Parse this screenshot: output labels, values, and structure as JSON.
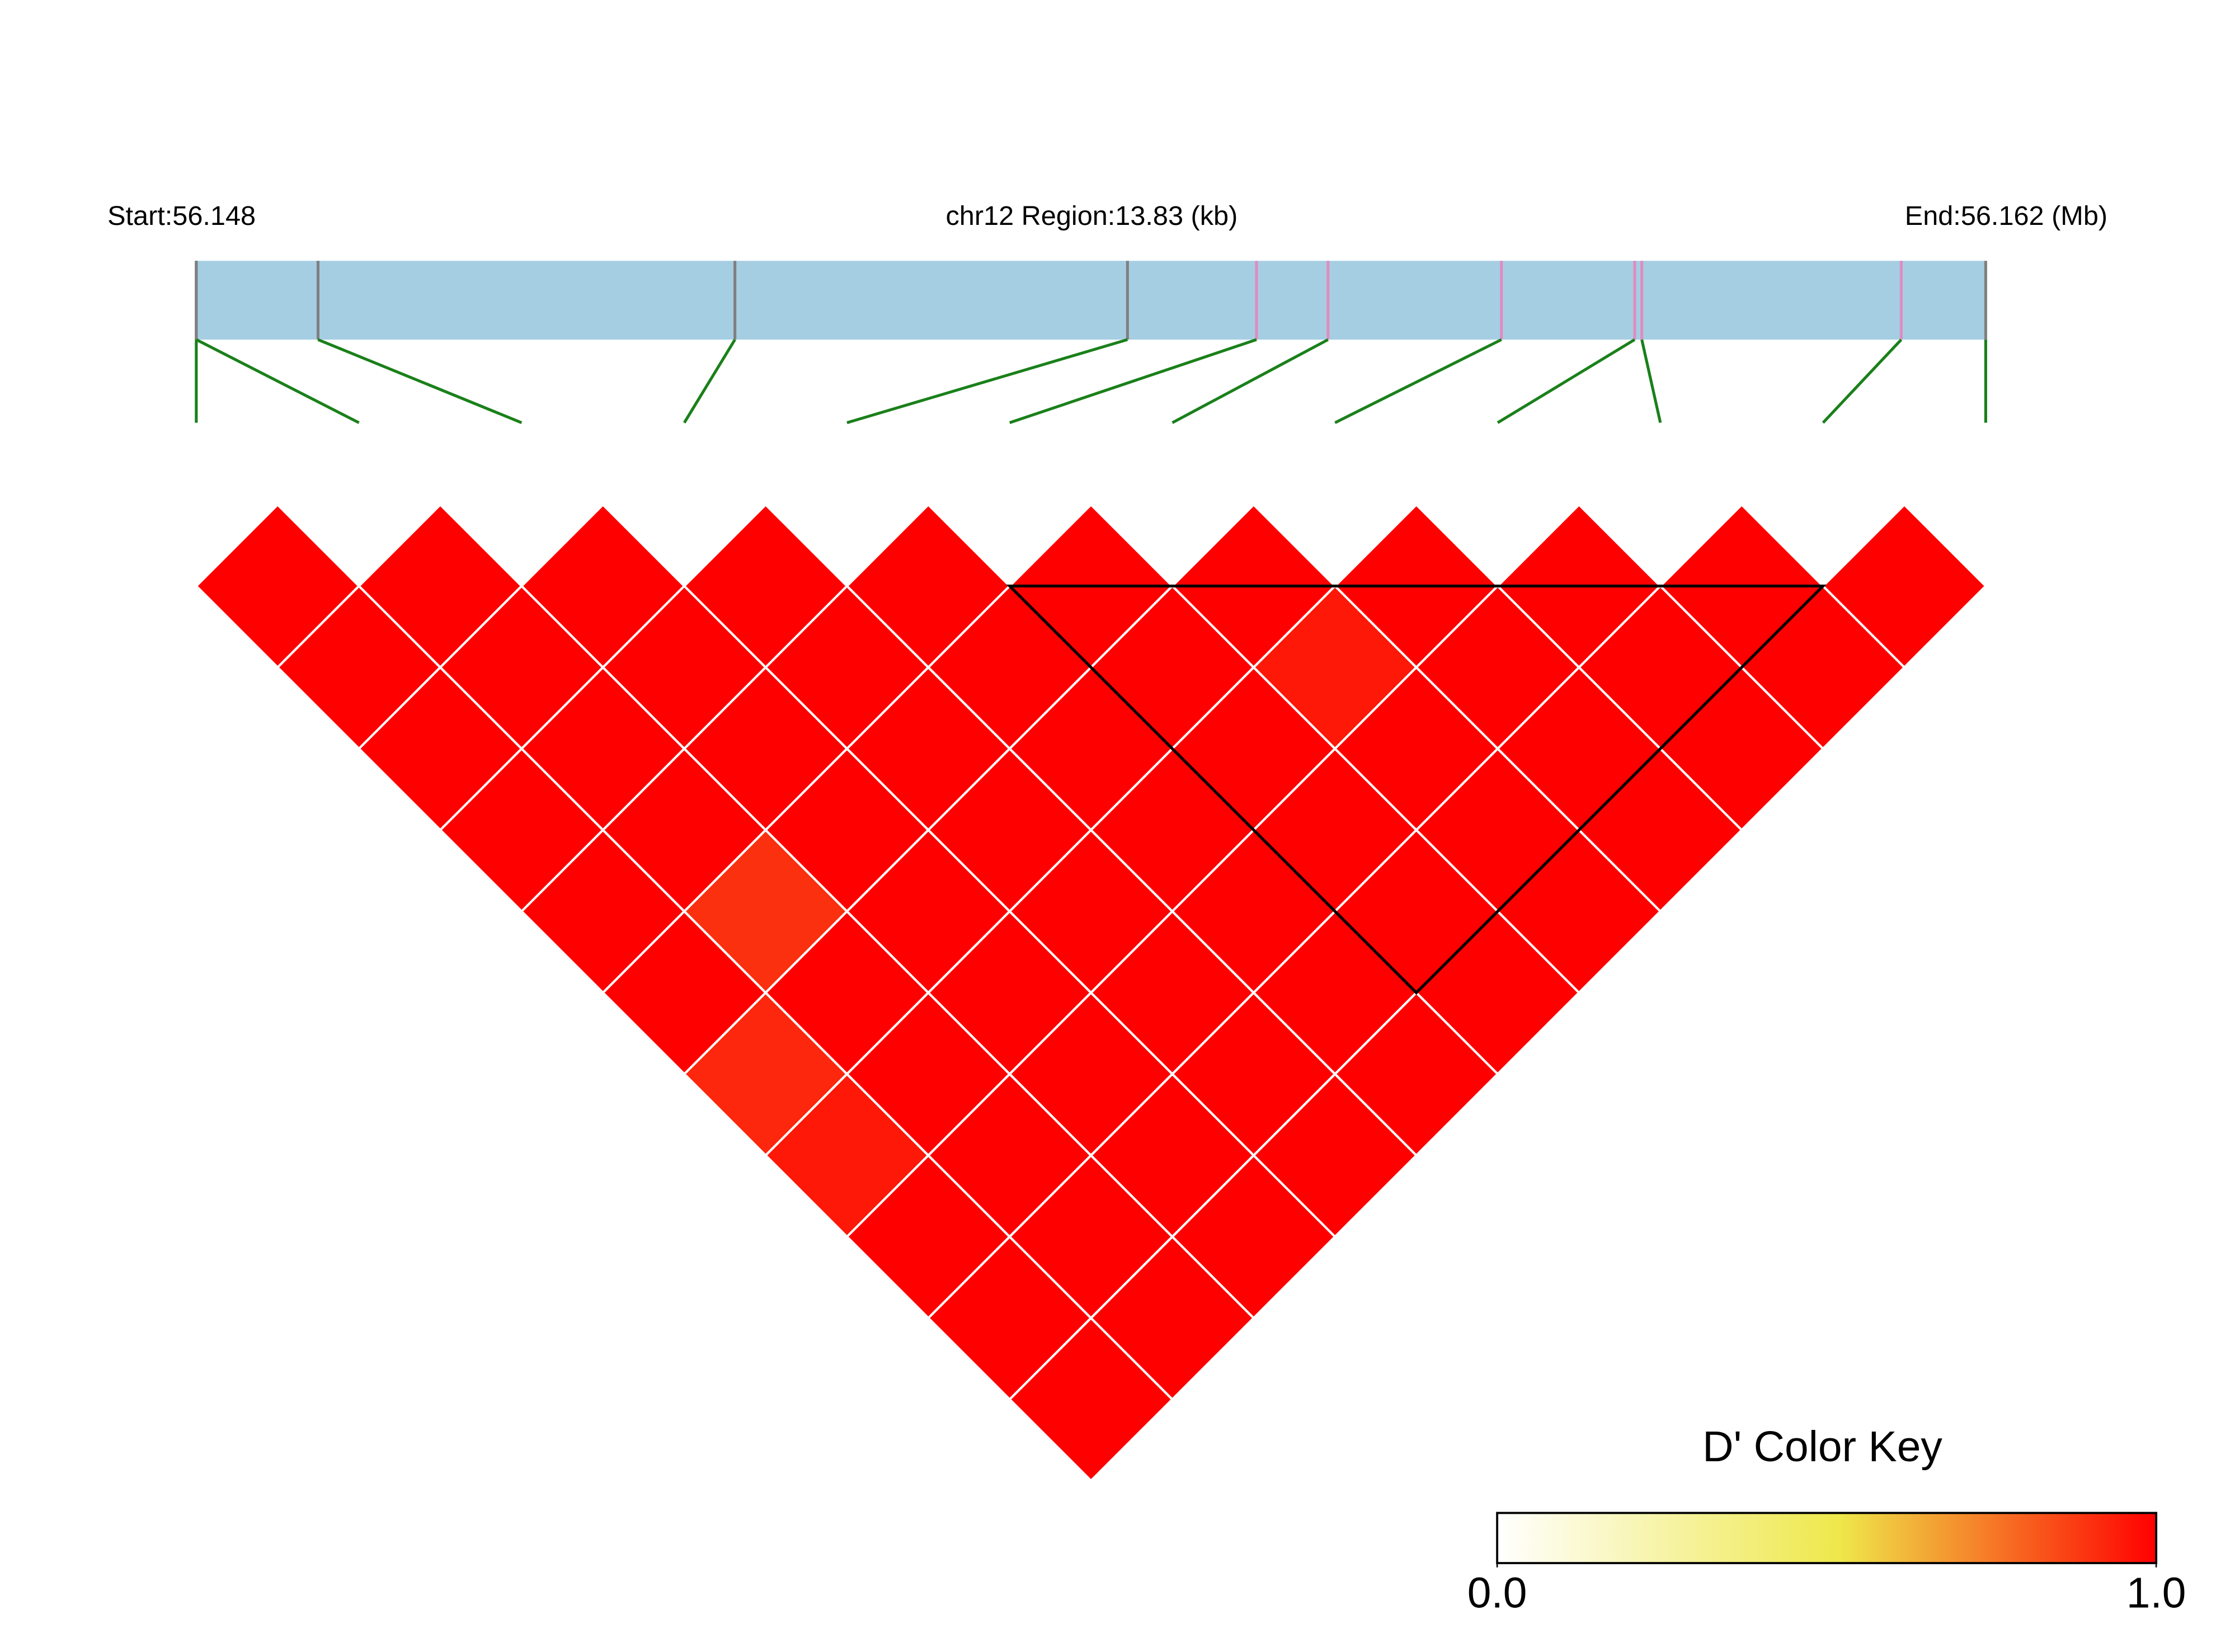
{
  "chart_data": {
    "type": "ld_heatmap",
    "start_label": "Start:56.148",
    "region_label": "chr12 Region:13.83 (kb)",
    "end_label": "End:56.162 (Mb)",
    "xlim": [
      0,
      13.83
    ],
    "snp_positions": [
      0,
      0,
      0.941,
      4.163,
      7.197,
      8.194,
      8.747,
      10.087,
      11.117,
      11.172,
      13.177,
      13.83
    ],
    "snp_colors": [
      "#808080",
      "#808080",
      "#808080",
      "#808080",
      "#808080",
      "#e08cc0",
      "#e08cc0",
      "#e08cc0",
      "#e08cc0",
      "#e08cc0",
      "#e08cc0",
      "#808080"
    ],
    "track_color": "#a6cee3",
    "connector_color": "#1a801a",
    "values": [
      [
        1,
        1,
        1,
        1,
        1,
        1,
        0.92,
        0.95,
        1,
        1,
        1
      ],
      [
        1,
        1,
        1,
        1,
        0.9,
        1,
        1,
        1,
        1,
        1
      ],
      [
        1,
        1,
        1,
        1,
        1,
        1,
        1,
        1,
        1
      ],
      [
        1,
        1,
        1,
        1,
        1,
        1,
        1,
        1
      ],
      [
        1,
        1,
        1,
        1,
        1,
        1,
        1
      ],
      [
        1,
        1,
        1,
        1,
        1,
        1
      ],
      [
        1,
        0.95,
        1,
        1,
        1
      ],
      [
        1,
        1,
        1,
        1
      ],
      [
        1,
        1,
        1
      ],
      [
        1,
        1
      ],
      [
        1
      ]
    ],
    "blocks": [
      [
        5,
        10
      ]
    ],
    "colorkey_title": "D' Color Key",
    "colorscale": [
      [
        0,
        "#ffffff"
      ],
      [
        0.52,
        "#eee84a"
      ],
      [
        1,
        "#ff0000"
      ]
    ],
    "clim": [
      0,
      1
    ],
    "cticks": [
      {
        "value": 0,
        "label": "0.0"
      },
      {
        "value": 1,
        "label": "1.0"
      }
    ]
  }
}
